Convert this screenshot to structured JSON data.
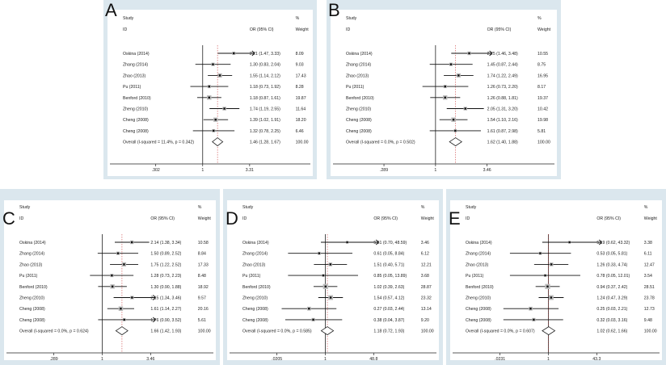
{
  "chart_data": [
    {
      "type": "forest",
      "panel": "A",
      "headers": {
        "study": "Study",
        "id": "ID",
        "or": "OR (95% CI)",
        "pct": "%",
        "weight": "Weight"
      },
      "xticks": [
        ".302",
        "1",
        "3.31"
      ],
      "xtick_values": [
        0.302,
        1,
        3.31
      ],
      "studies": [
        {
          "name": "Oskina (2014)",
          "or": 2.21,
          "lo": 1.47,
          "hi": 3.33,
          "text": "2.21 (1.47, 3.33)",
          "weight": "8.09"
        },
        {
          "name": "Zhang (2014)",
          "or": 1.3,
          "lo": 0.83,
          "hi": 2.04,
          "text": "1.30 (0.83, 2.04)",
          "weight": "9.03"
        },
        {
          "name": "Zhao (2013)",
          "or": 1.55,
          "lo": 1.14,
          "hi": 2.12,
          "text": "1.55 (1.14, 2.12)",
          "weight": "17.43"
        },
        {
          "name": "Pu (2011)",
          "or": 1.18,
          "lo": 0.73,
          "hi": 1.92,
          "text": "1.18 (0.73, 1.92)",
          "weight": "8.28"
        },
        {
          "name": "Benford (2010)",
          "or": 1.18,
          "lo": 0.87,
          "hi": 1.61,
          "text": "1.18 (0.87, 1.61)",
          "weight": "19.87"
        },
        {
          "name": "Zheng (2010)",
          "or": 1.74,
          "lo": 1.19,
          "hi": 2.55,
          "text": "1.74 (1.19, 2.55)",
          "weight": "11.64"
        },
        {
          "name": "Cheng (2008)",
          "or": 1.39,
          "lo": 1.02,
          "hi": 1.91,
          "text": "1.39 (1.02, 1.91)",
          "weight": "18.20"
        },
        {
          "name": "Cheng (2008)",
          "or": 1.32,
          "lo": 0.78,
          "hi": 2.25,
          "text": "1.32 (0.78, 2.25)",
          "weight": "6.46"
        }
      ],
      "overall": {
        "name": "Overall  (I-squared = 11.4%, p = 0.342)",
        "or": 1.46,
        "lo": 1.28,
        "hi": 1.67,
        "text": "1.46 (1.28, 1.67)",
        "weight": "100.00"
      }
    },
    {
      "type": "forest",
      "panel": "B",
      "headers": {
        "study": "Study",
        "id": "ID",
        "or": "OR (95% CI)",
        "pct": "%",
        "weight": "Weight"
      },
      "xticks": [
        ".289",
        "1",
        "3.46"
      ],
      "xtick_values": [
        0.289,
        1,
        3.46
      ],
      "studies": [
        {
          "name": "Oskina (2014)",
          "or": 2.25,
          "lo": 1.46,
          "hi": 3.48,
          "text": "2.25 (1.46, 3.48)",
          "weight": "10.55"
        },
        {
          "name": "Zhang (2014)",
          "or": 1.45,
          "lo": 0.87,
          "hi": 2.44,
          "text": "1.45 (0.87, 2.44)",
          "weight": "8.75"
        },
        {
          "name": "Zhao (2013)",
          "or": 1.74,
          "lo": 1.22,
          "hi": 2.49,
          "text": "1.74 (1.22, 2.49)",
          "weight": "16.95"
        },
        {
          "name": "Pu (2011)",
          "or": 1.26,
          "lo": 0.73,
          "hi": 2.2,
          "text": "1.26 (0.73, 2.20)",
          "weight": "8.17"
        },
        {
          "name": "Benford (2010)",
          "or": 1.26,
          "lo": 0.88,
          "hi": 1.81,
          "text": "1.26 (0.88, 1.81)",
          "weight": "19.37"
        },
        {
          "name": "Zheng (2010)",
          "or": 2.05,
          "lo": 1.31,
          "hi": 3.2,
          "text": "2.05 (1.31, 3.20)",
          "weight": "10.42"
        },
        {
          "name": "Cheng (2008)",
          "or": 1.54,
          "lo": 1.1,
          "hi": 2.16,
          "text": "1.54 (1.10, 2.16)",
          "weight": "19.98"
        },
        {
          "name": "Cheng (2008)",
          "or": 1.61,
          "lo": 0.87,
          "hi": 2.98,
          "text": "1.61 (0.87, 2.98)",
          "weight": "5.81"
        }
      ],
      "overall": {
        "name": "Overall  (I-squared = 0.0%, p = 0.502)",
        "or": 1.62,
        "lo": 1.4,
        "hi": 1.88,
        "text": "1.62 (1.40, 1.88)",
        "weight": "100.00"
      }
    },
    {
      "type": "forest",
      "panel": "C",
      "headers": {
        "study": "Study",
        "id": "ID",
        "or": "OR (95% CI)",
        "pct": "%",
        "weight": "Weight"
      },
      "xticks": [
        ".289",
        "1",
        "3.46"
      ],
      "xtick_values": [
        0.289,
        1,
        3.46
      ],
      "studies": [
        {
          "name": "Oskina (2014)",
          "or": 2.14,
          "lo": 1.38,
          "hi": 3.34,
          "text": "2.14 (1.38, 3.34)",
          "weight": "10.58"
        },
        {
          "name": "Zhang (2014)",
          "or": 1.5,
          "lo": 0.89,
          "hi": 2.52,
          "text": "1.50 (0.89, 2.52)",
          "weight": "8.84"
        },
        {
          "name": "Zhao (2013)",
          "or": 1.75,
          "lo": 1.22,
          "hi": 2.52,
          "text": "1.75 (1.22, 2.52)",
          "weight": "17.33"
        },
        {
          "name": "Pu (2011)",
          "or": 1.28,
          "lo": 0.73,
          "hi": 2.23,
          "text": "1.28 (0.73, 2.23)",
          "weight": "8.48"
        },
        {
          "name": "Benford (2010)",
          "or": 1.3,
          "lo": 0.9,
          "hi": 1.88,
          "text": "1.30 (0.90, 1.88)",
          "weight": "18.92"
        },
        {
          "name": "Zheng (2010)",
          "or": 2.15,
          "lo": 1.34,
          "hi": 3.46,
          "text": "2.15 (1.34, 3.46)",
          "weight": "9.57"
        },
        {
          "name": "Cheng (2008)",
          "or": 1.61,
          "lo": 1.14,
          "hi": 2.27,
          "text": "1.61 (1.14, 2.27)",
          "weight": "20.16"
        },
        {
          "name": "Cheng (2008)",
          "or": 1.76,
          "lo": 0.9,
          "hi": 3.52,
          "text": "1.76 (0.90, 3.52)",
          "weight": "5.61"
        }
      ],
      "overall": {
        "name": "Overall  (I-squared = 0.0%, p = 0.624)",
        "or": 1.66,
        "lo": 1.42,
        "hi": 1.93,
        "text": "1.66 (1.42, 1.93)",
        "weight": "100.00"
      }
    },
    {
      "type": "forest",
      "panel": "D",
      "headers": {
        "study": "Study",
        "id": "ID",
        "or": "OR (95% CI)",
        "pct": "%",
        "weight": "Weight"
      },
      "xticks": [
        ".0205",
        "1",
        "48.8"
      ],
      "xtick_values": [
        0.0205,
        1,
        48.8
      ],
      "studies": [
        {
          "name": "Oskina (2014)",
          "or": 5.81,
          "lo": 0.7,
          "hi": 48.59,
          "text": "5.81 (0.70, 48.59)",
          "weight": "3.46"
        },
        {
          "name": "Zhang (2014)",
          "or": 0.61,
          "lo": 0.05,
          "hi": 8.84,
          "text": "0.61 (0.05, 8.84)",
          "weight": "6.12"
        },
        {
          "name": "Zhao (2013)",
          "or": 1.51,
          "lo": 0.4,
          "hi": 5.71,
          "text": "1.51 (0.40, 5.71)",
          "weight": "12.21"
        },
        {
          "name": "Pu (2011)",
          "or": 0.85,
          "lo": 0.05,
          "hi": 13.89,
          "text": "0.85 (0.05, 13.89)",
          "weight": "3.68"
        },
        {
          "name": "Benford (2010)",
          "or": 1.02,
          "lo": 0.39,
          "hi": 2.63,
          "text": "1.02 (0.39, 2.63)",
          "weight": "28.87"
        },
        {
          "name": "Zheng (2010)",
          "or": 1.54,
          "lo": 0.57,
          "hi": 4.12,
          "text": "1.54 (0.57, 4.12)",
          "weight": "23.32"
        },
        {
          "name": "Cheng (2008)",
          "or": 0.27,
          "lo": 0.03,
          "hi": 2.44,
          "text": "0.27 (0.03, 2.44)",
          "weight": "13.14"
        },
        {
          "name": "Cheng (2008)",
          "or": 0.38,
          "lo": 0.04,
          "hi": 3.87,
          "text": "0.38 (0.04, 3.87)",
          "weight": "9.20"
        }
      ],
      "overall": {
        "name": "Overall  (I-squared = 0.0%, p = 0.585)",
        "or": 1.18,
        "lo": 0.72,
        "hi": 1.93,
        "text": "1.18 (0.72, 1.93)",
        "weight": "100.00"
      }
    },
    {
      "type": "forest",
      "panel": "E",
      "headers": {
        "study": "Study",
        "id": "ID",
        "or": "OR (95% CI)",
        "pct": "%",
        "weight": "Weight"
      },
      "xticks": [
        ".0231",
        "1",
        "43.3"
      ],
      "xtick_values": [
        0.0231,
        1,
        43.3
      ],
      "studies": [
        {
          "name": "Oskina (2014)",
          "or": 5.19,
          "lo": 0.62,
          "hi": 43.32,
          "text": "5.19 (0.62, 43.32)",
          "weight": "3.38"
        },
        {
          "name": "Zhang (2014)",
          "or": 0.53,
          "lo": 0.05,
          "hi": 5.81,
          "text": "0.53 (0.05, 5.81)",
          "weight": "6.11"
        },
        {
          "name": "Zhao (2013)",
          "or": 1.26,
          "lo": 0.33,
          "hi": 4.74,
          "text": "1.26 (0.33, 4.74)",
          "weight": "12.47"
        },
        {
          "name": "Pu (2011)",
          "or": 0.78,
          "lo": 0.05,
          "hi": 12.01,
          "text": "0.78 (0.05, 12.01)",
          "weight": "3.54"
        },
        {
          "name": "Benford (2010)",
          "or": 0.94,
          "lo": 0.37,
          "hi": 2.42,
          "text": "0.94 (0.37, 2.42)",
          "weight": "28.51"
        },
        {
          "name": "Zheng (2010)",
          "or": 1.24,
          "lo": 0.47,
          "hi": 3.29,
          "text": "1.24 (0.47, 3.29)",
          "weight": "23.78"
        },
        {
          "name": "Cheng (2008)",
          "or": 0.25,
          "lo": 0.03,
          "hi": 2.21,
          "text": "0.25 (0.03, 2.21)",
          "weight": "12.73"
        },
        {
          "name": "Cheng (2008)",
          "or": 0.32,
          "lo": 0.03,
          "hi": 3.16,
          "text": "0.32 (0.03, 3.16)",
          "weight": "9.48"
        }
      ],
      "overall": {
        "name": "Overall  (I-squared = 0.0%, p = 0.607)",
        "or": 1.02,
        "lo": 0.62,
        "hi": 1.66,
        "text": "1.02 (0.62, 1.66)",
        "weight": "100.00"
      }
    }
  ]
}
